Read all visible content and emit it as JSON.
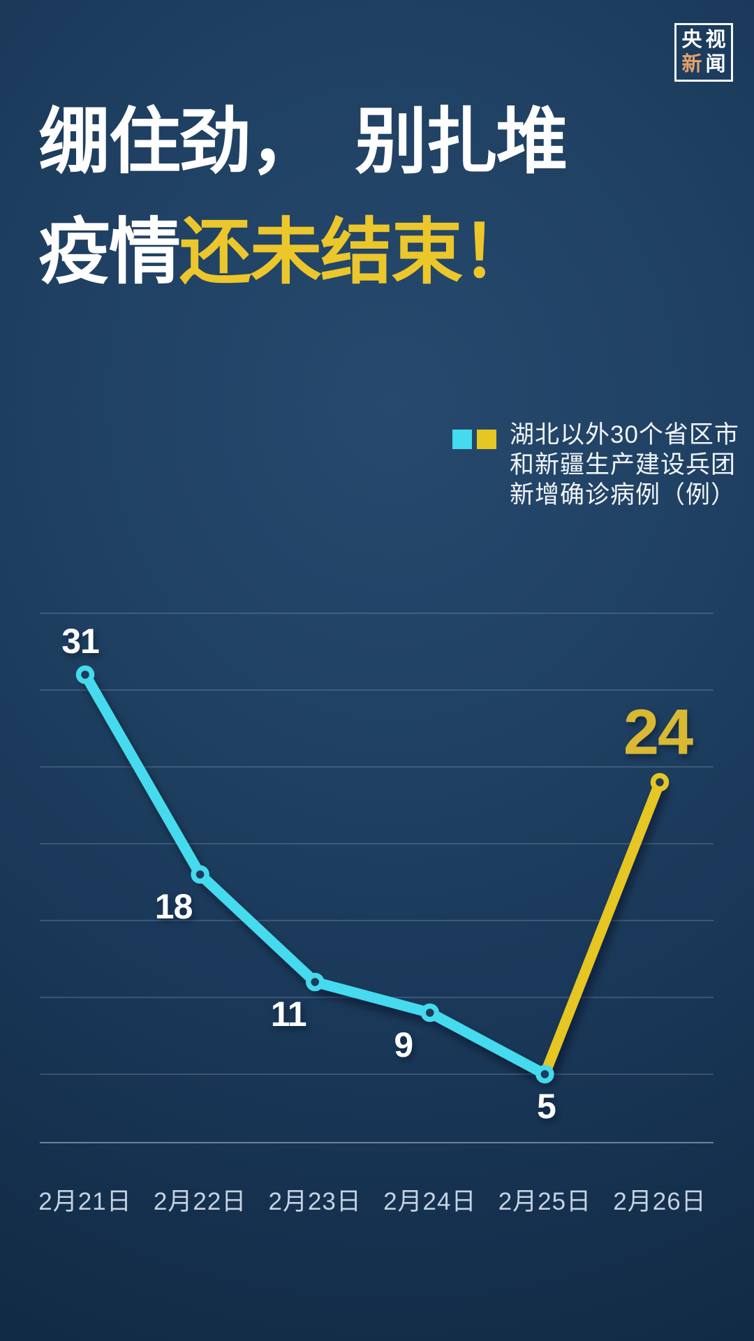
{
  "poster": {
    "logo": {
      "row1": "央视",
      "row2_accent": "新",
      "row2_rest": "闻"
    },
    "title": {
      "line1": "绷住劲，　别扎堆",
      "line2_white": "疫情",
      "line2_yellow": "还未结束！"
    },
    "legend": {
      "lines": [
        "湖北以外30个省区市",
        "和新疆生产建设兵团",
        "新增确诊病例（例）"
      ]
    }
  },
  "colors": {
    "accent_cyan": "#45daee",
    "accent_yellow": "#e5c622",
    "title_yellow": "#ecc72b",
    "value_label_white": "#ffffff",
    "value_label_yellow": "#d9b933",
    "logo_accent": "#e2a26e",
    "date_label": "#c6d3e2",
    "legend_text": "#f0f4f8",
    "background_navy": "#1d3b5b"
  },
  "chart_data": {
    "type": "line",
    "x": [
      "2月21日",
      "2月22日",
      "2月23日",
      "2月24日",
      "2月25日",
      "2月26日"
    ],
    "values": [
      31,
      18,
      11,
      9,
      5,
      24
    ],
    "series": [
      {
        "name": "湖北以外30个省区市和新疆生产建设兵团新增确诊病例（例）",
        "values": [
          31,
          18,
          11,
          9,
          5,
          24
        ]
      }
    ],
    "highlight_from_index": 4,
    "label_positions": [
      "above-left",
      "below-left",
      "below-left",
      "below-left",
      "below",
      "above"
    ],
    "ylim": [
      0,
      35
    ],
    "gridline_values": [
      5,
      10,
      15,
      20,
      25,
      30,
      35
    ],
    "grid": true,
    "legend_position": "top-right",
    "title": "",
    "xlabel": "",
    "ylabel": "新增确诊病例（例）"
  }
}
